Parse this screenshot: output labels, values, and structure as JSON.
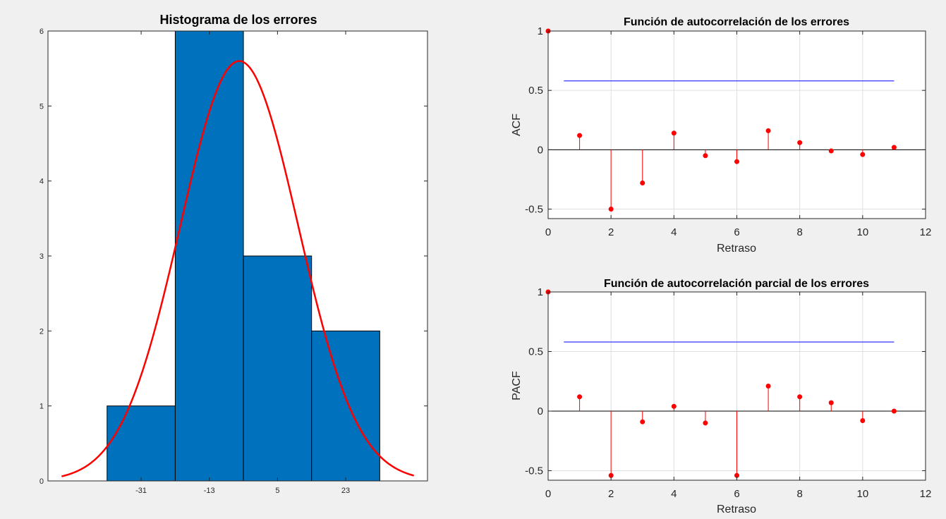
{
  "chart_data": [
    {
      "type": "bar",
      "title": "Histograma de los errores",
      "xlabel": "",
      "ylabel": "",
      "categories": [
        "-31",
        "-13",
        "5",
        "23"
      ],
      "values": [
        1,
        6,
        3,
        2
      ],
      "bin_edges": [
        -40,
        -22,
        -4,
        14,
        32
      ],
      "ylim": [
        0,
        6
      ],
      "yticks": [
        0,
        1,
        2,
        3,
        4,
        5,
        6
      ],
      "grid": false,
      "bar_color": "#0072BD",
      "fit_curve": {
        "type": "normal_pdf_fit",
        "color": "#FF0000",
        "mean": -5.1,
        "std": 15.6,
        "peak": 5.6,
        "xrange": [
          -52,
          41
        ]
      }
    },
    {
      "type": "stem",
      "title": "Función de autocorrelación de los errores",
      "xlabel": "Retraso",
      "ylabel": "ACF",
      "x": [
        0,
        1,
        2,
        3,
        4,
        5,
        6,
        7,
        8,
        9,
        10,
        11
      ],
      "values": [
        1,
        0.12,
        -0.5,
        -0.28,
        0.14,
        -0.05,
        -0.1,
        0.16,
        0.06,
        -0.01,
        -0.04,
        0.02
      ],
      "confidence_bounds": [
        0.58,
        -0.58
      ],
      "bounds_xrange": [
        0.5,
        11
      ],
      "xlim": [
        0,
        12
      ],
      "ylim": [
        -0.58,
        1
      ],
      "xticks": [
        0,
        2,
        4,
        6,
        8,
        10,
        12
      ],
      "yticks": [
        -0.5,
        0,
        0.5,
        1
      ],
      "grid": true,
      "stem_color": "#FF0000",
      "bound_color": "#0000FF"
    },
    {
      "type": "stem",
      "title": "Función de autocorrelación parcial de los errores",
      "xlabel": "Retraso",
      "ylabel": "PACF",
      "x": [
        0,
        1,
        2,
        3,
        4,
        5,
        6,
        7,
        8,
        9,
        10,
        11
      ],
      "values": [
        1,
        0.12,
        -0.54,
        -0.09,
        0.04,
        -0.1,
        -0.54,
        0.21,
        0.12,
        0.07,
        -0.08,
        0.0
      ],
      "confidence_bounds": [
        0.58,
        -0.58
      ],
      "bounds_xrange": [
        0.5,
        11
      ],
      "xlim": [
        0,
        12
      ],
      "ylim": [
        -0.58,
        1
      ],
      "xticks": [
        0,
        2,
        4,
        6,
        8,
        10,
        12
      ],
      "yticks": [
        -0.5,
        0,
        0.5,
        1
      ],
      "grid": true,
      "stem_color": "#FF0000",
      "bound_color": "#0000FF"
    }
  ]
}
